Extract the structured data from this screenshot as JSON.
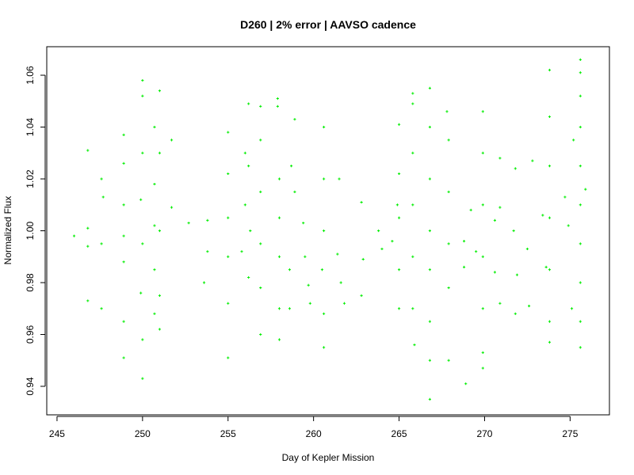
{
  "chart_data": {
    "type": "scatter",
    "title": "D260 | 2% error | AAVSO cadence",
    "xlabel": "Day of Kepler Mission",
    "ylabel": "Normalized Flux",
    "xlim": [
      244.4,
      277.3
    ],
    "ylim": [
      0.929,
      1.071
    ],
    "x_ticks": [
      245,
      250,
      255,
      260,
      265,
      270,
      275
    ],
    "y_ticks": [
      0.94,
      0.96,
      0.98,
      1.0,
      1.02,
      1.04,
      1.06
    ],
    "x_tick_labels": [
      "245",
      "250",
      "255",
      "260",
      "265",
      "270",
      "275"
    ],
    "y_tick_labels": [
      "0.94",
      "0.96",
      "0.98",
      "1.00",
      "1.02",
      "1.04",
      "1.06"
    ],
    "marker": "+",
    "marker_color": "#00ee00",
    "grid": false,
    "legend": "none",
    "series": [
      {
        "points": [
          [
            246.0,
            0.998
          ],
          [
            246.8,
            1.031
          ],
          [
            246.8,
            1.001
          ],
          [
            246.8,
            0.994
          ],
          [
            246.8,
            0.973
          ],
          [
            247.6,
            1.02
          ],
          [
            247.7,
            1.013
          ],
          [
            247.6,
            0.995
          ],
          [
            247.6,
            0.97
          ],
          [
            248.9,
            1.037
          ],
          [
            248.9,
            1.026
          ],
          [
            248.9,
            1.01
          ],
          [
            248.9,
            0.998
          ],
          [
            248.9,
            0.988
          ],
          [
            248.9,
            0.965
          ],
          [
            248.9,
            0.951
          ],
          [
            250.0,
            1.058
          ],
          [
            250.0,
            1.052
          ],
          [
            250.0,
            1.03
          ],
          [
            249.9,
            1.012
          ],
          [
            250.0,
            0.995
          ],
          [
            249.9,
            0.976
          ],
          [
            250.0,
            0.958
          ],
          [
            250.0,
            0.943
          ],
          [
            250.7,
            1.04
          ],
          [
            250.7,
            1.018
          ],
          [
            250.7,
            1.002
          ],
          [
            250.7,
            0.985
          ],
          [
            250.7,
            0.968
          ],
          [
            251.0,
            1.054
          ],
          [
            251.0,
            1.03
          ],
          [
            251.0,
            1.0
          ],
          [
            251.0,
            0.975
          ],
          [
            251.0,
            0.962
          ],
          [
            251.7,
            1.035
          ],
          [
            251.7,
            1.009
          ],
          [
            252.7,
            1.003
          ],
          [
            253.6,
            0.98
          ],
          [
            253.8,
            1.004
          ],
          [
            253.8,
            0.992
          ],
          [
            255.0,
            1.038
          ],
          [
            255.0,
            1.022
          ],
          [
            255.0,
            1.005
          ],
          [
            255.0,
            0.99
          ],
          [
            255.0,
            0.972
          ],
          [
            255.0,
            0.951
          ],
          [
            256.0,
            1.03
          ],
          [
            256.0,
            1.01
          ],
          [
            255.8,
            0.992
          ],
          [
            256.2,
            1.049
          ],
          [
            256.2,
            1.025
          ],
          [
            256.3,
            1.0
          ],
          [
            256.2,
            0.982
          ],
          [
            256.9,
            1.048
          ],
          [
            256.9,
            1.035
          ],
          [
            256.9,
            1.015
          ],
          [
            256.9,
            0.995
          ],
          [
            256.9,
            0.978
          ],
          [
            256.9,
            0.96
          ],
          [
            257.9,
            1.051
          ],
          [
            257.9,
            1.048
          ],
          [
            258.0,
            1.02
          ],
          [
            258.0,
            1.005
          ],
          [
            258.0,
            0.99
          ],
          [
            258.0,
            0.97
          ],
          [
            258.0,
            0.958
          ],
          [
            258.9,
            1.043
          ],
          [
            258.7,
            1.025
          ],
          [
            258.9,
            1.015
          ],
          [
            258.6,
            0.985
          ],
          [
            258.6,
            0.97
          ],
          [
            259.4,
            1.003
          ],
          [
            259.5,
            0.99
          ],
          [
            259.7,
            0.979
          ],
          [
            259.8,
            0.972
          ],
          [
            260.6,
            1.04
          ],
          [
            260.6,
            1.02
          ],
          [
            260.6,
            1.0
          ],
          [
            260.5,
            0.985
          ],
          [
            260.6,
            0.968
          ],
          [
            260.6,
            0.955
          ],
          [
            261.5,
            1.02
          ],
          [
            261.4,
            0.991
          ],
          [
            261.6,
            0.98
          ],
          [
            261.8,
            0.972
          ],
          [
            262.8,
            1.011
          ],
          [
            262.9,
            0.989
          ],
          [
            262.8,
            0.975
          ],
          [
            263.8,
            1.0
          ],
          [
            264.0,
            0.993
          ],
          [
            264.6,
            0.996
          ],
          [
            264.9,
            1.01
          ],
          [
            265.0,
            1.041
          ],
          [
            265.0,
            1.022
          ],
          [
            265.0,
            1.005
          ],
          [
            265.0,
            0.985
          ],
          [
            265.0,
            0.97
          ],
          [
            265.8,
            1.053
          ],
          [
            265.8,
            1.049
          ],
          [
            265.8,
            1.03
          ],
          [
            265.8,
            1.01
          ],
          [
            265.8,
            0.99
          ],
          [
            265.8,
            0.97
          ],
          [
            265.9,
            0.956
          ],
          [
            266.8,
            1.055
          ],
          [
            266.8,
            1.04
          ],
          [
            266.8,
            1.02
          ],
          [
            266.8,
            1.0
          ],
          [
            266.8,
            0.985
          ],
          [
            266.8,
            0.965
          ],
          [
            266.8,
            0.95
          ],
          [
            266.8,
            0.935
          ],
          [
            267.8,
            1.046
          ],
          [
            267.9,
            1.035
          ],
          [
            267.9,
            1.015
          ],
          [
            267.9,
            0.995
          ],
          [
            267.9,
            0.978
          ],
          [
            267.9,
            0.95
          ],
          [
            268.8,
            0.996
          ],
          [
            268.8,
            0.986
          ],
          [
            268.9,
            0.941
          ],
          [
            269.2,
            1.008
          ],
          [
            269.5,
            0.992
          ],
          [
            269.9,
            1.046
          ],
          [
            269.9,
            1.03
          ],
          [
            269.9,
            1.01
          ],
          [
            269.9,
            0.99
          ],
          [
            269.9,
            0.97
          ],
          [
            269.9,
            0.953
          ],
          [
            269.9,
            0.947
          ],
          [
            270.6,
            1.004
          ],
          [
            270.6,
            0.984
          ],
          [
            270.9,
            1.028
          ],
          [
            270.9,
            1.009
          ],
          [
            270.9,
            0.972
          ],
          [
            271.8,
            1.024
          ],
          [
            271.7,
            1.0
          ],
          [
            271.9,
            0.983
          ],
          [
            271.8,
            0.968
          ],
          [
            272.5,
            0.993
          ],
          [
            272.6,
            0.971
          ],
          [
            272.8,
            1.027
          ],
          [
            273.4,
            1.006
          ],
          [
            273.6,
            0.986
          ],
          [
            273.8,
            1.062
          ],
          [
            273.8,
            1.044
          ],
          [
            273.8,
            1.025
          ],
          [
            273.8,
            1.005
          ],
          [
            273.8,
            0.985
          ],
          [
            273.8,
            0.965
          ],
          [
            273.8,
            0.957
          ],
          [
            274.7,
            1.013
          ],
          [
            274.9,
            1.002
          ],
          [
            275.2,
            1.035
          ],
          [
            275.1,
            0.97
          ],
          [
            275.6,
            1.066
          ],
          [
            275.6,
            1.061
          ],
          [
            275.6,
            1.052
          ],
          [
            275.6,
            1.04
          ],
          [
            275.6,
            1.025
          ],
          [
            275.6,
            1.01
          ],
          [
            275.6,
            0.995
          ],
          [
            275.6,
            0.98
          ],
          [
            275.6,
            0.965
          ],
          [
            275.6,
            0.955
          ],
          [
            275.9,
            1.016
          ]
        ]
      }
    ]
  }
}
